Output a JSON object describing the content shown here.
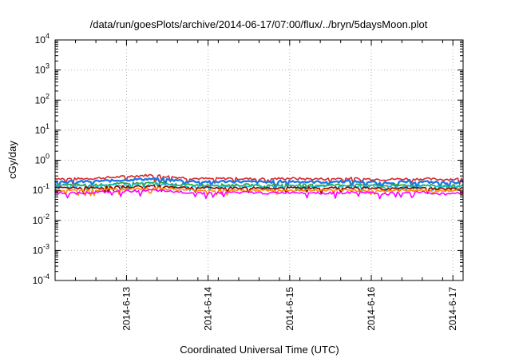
{
  "chart_data": {
    "type": "line",
    "title": "/data/run/goesPlots/archive/2014-06-17/07:00/flux/../bryn/5daysMoon.plot",
    "xlabel": "Coordinated Universal Time (UTC)",
    "ylabel": "cGy/day",
    "yscale": "log",
    "ylim": [
      0.0001,
      10000
    ],
    "xlim": [
      "2014-06-12 03:00",
      "2014-06-17 03:00"
    ],
    "y_tick_labels": [
      {
        "base": "10",
        "exp": "-4"
      },
      {
        "base": "10",
        "exp": "-3"
      },
      {
        "base": "10",
        "exp": "-2"
      },
      {
        "base": "10",
        "exp": "-1"
      },
      {
        "base": "10",
        "exp": "0"
      },
      {
        "base": "10",
        "exp": "1"
      },
      {
        "base": "10",
        "exp": "2"
      },
      {
        "base": "10",
        "exp": "3"
      },
      {
        "base": "10",
        "exp": "4"
      }
    ],
    "x_ticks": [
      "2014-6-13",
      "2014-6-14",
      "2014-6-15",
      "2014-6-16",
      "2014-6-17"
    ],
    "grid": true,
    "legend": "none",
    "series": [
      {
        "color": "#d62728",
        "level": 0.24,
        "values": [
          0.25,
          0.24,
          0.25,
          0.27,
          0.3,
          0.32,
          0.28,
          0.25,
          0.24,
          0.25,
          0.24,
          0.24,
          0.25,
          0.24,
          0.24,
          0.25,
          0.24,
          0.23,
          0.24,
          0.24,
          0.23,
          0.24
        ]
      },
      {
        "color": "#1f77e8",
        "level": 0.19,
        "values": [
          0.2,
          0.19,
          0.2,
          0.21,
          0.23,
          0.24,
          0.22,
          0.2,
          0.19,
          0.2,
          0.19,
          0.19,
          0.2,
          0.19,
          0.19,
          0.2,
          0.19,
          0.18,
          0.19,
          0.19,
          0.18,
          0.19
        ]
      },
      {
        "color": "#2ca02c",
        "level": 0.15,
        "values": [
          0.15,
          0.15,
          0.15,
          0.16,
          0.17,
          0.18,
          0.16,
          0.15,
          0.15,
          0.15,
          0.15,
          0.15,
          0.15,
          0.15,
          0.15,
          0.15,
          0.15,
          0.14,
          0.15,
          0.15,
          0.14,
          0.15
        ]
      },
      {
        "color": "#17becf",
        "level": 0.14,
        "values": [
          0.14,
          0.14,
          0.14,
          0.15,
          0.16,
          0.17,
          0.15,
          0.14,
          0.14,
          0.14,
          0.14,
          0.14,
          0.14,
          0.14,
          0.14,
          0.14,
          0.14,
          0.13,
          0.14,
          0.14,
          0.13,
          0.14
        ]
      },
      {
        "color": "#8b0000",
        "level": 0.12,
        "values": [
          0.12,
          0.12,
          0.12,
          0.13,
          0.13,
          0.14,
          0.13,
          0.12,
          0.12,
          0.12,
          0.12,
          0.12,
          0.12,
          0.12,
          0.12,
          0.12,
          0.12,
          0.11,
          0.12,
          0.12,
          0.11,
          0.12
        ]
      },
      {
        "color": "#ff8c00",
        "level": 0.1,
        "values": [
          0.1,
          0.1,
          0.1,
          0.11,
          0.11,
          0.12,
          0.11,
          0.1,
          0.1,
          0.1,
          0.1,
          0.1,
          0.1,
          0.1,
          0.1,
          0.1,
          0.1,
          0.095,
          0.1,
          0.1,
          0.095,
          0.1
        ]
      },
      {
        "color": "#ff00ff",
        "level": 0.085,
        "values": [
          0.085,
          0.08,
          0.085,
          0.09,
          0.095,
          0.1,
          0.09,
          0.085,
          0.08,
          0.085,
          0.085,
          0.08,
          0.085,
          0.085,
          0.08,
          0.085,
          0.085,
          0.075,
          0.085,
          0.085,
          0.075,
          0.085
        ]
      }
    ]
  }
}
